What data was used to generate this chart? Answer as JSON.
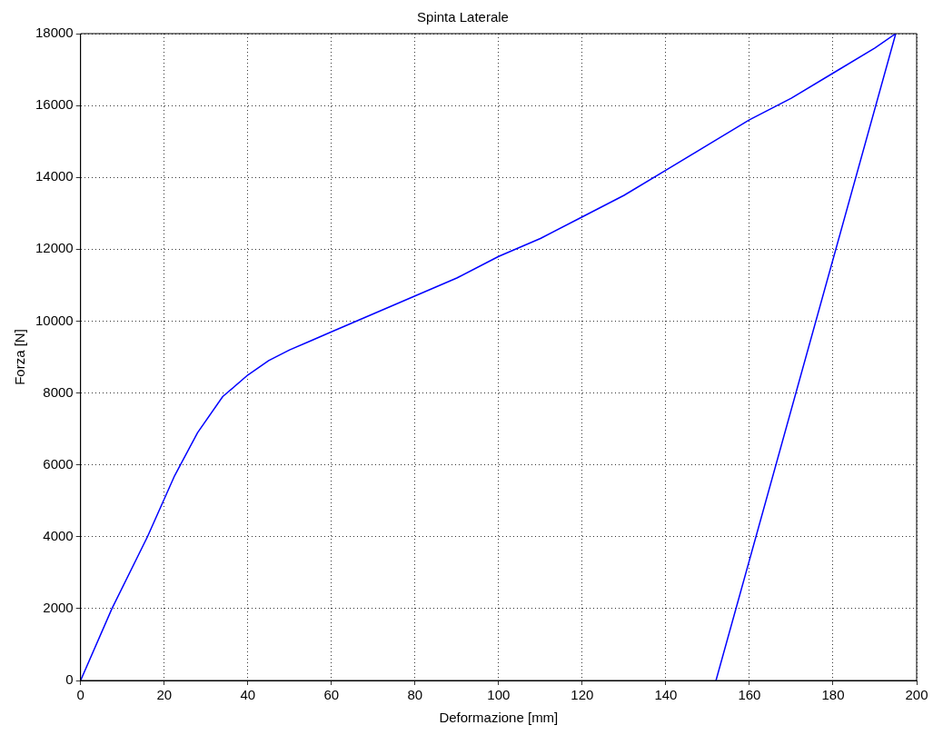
{
  "chart_data": {
    "type": "line",
    "title": "Spinta Laterale",
    "xlabel": "Deformazione [mm]",
    "ylabel": "Forza [N]",
    "xlim": [
      0,
      200
    ],
    "ylim": [
      0,
      18000
    ],
    "xticks": [
      0,
      20,
      40,
      60,
      80,
      100,
      120,
      140,
      160,
      180,
      200
    ],
    "yticks": [
      0,
      2000,
      4000,
      6000,
      8000,
      10000,
      12000,
      14000,
      16000,
      18000
    ],
    "grid": true,
    "legend": false,
    "marker": "none",
    "line_style": "solid",
    "series": [
      {
        "color": "#0000ff",
        "x": [
          0,
          7.5,
          16,
          22.5,
          28,
          34,
          40,
          45,
          50,
          55,
          60,
          70,
          80,
          90,
          100,
          110,
          120,
          130,
          140,
          150,
          160,
          170,
          180,
          190,
          195,
          152
        ],
        "values": [
          0,
          2000,
          4000,
          5700,
          6900,
          7900,
          8500,
          8900,
          9200,
          9450,
          9700,
          10200,
          10700,
          11200,
          11800,
          12300,
          12900,
          13500,
          14200,
          14900,
          15600,
          16200,
          16900,
          17600,
          18000,
          0
        ]
      }
    ]
  }
}
